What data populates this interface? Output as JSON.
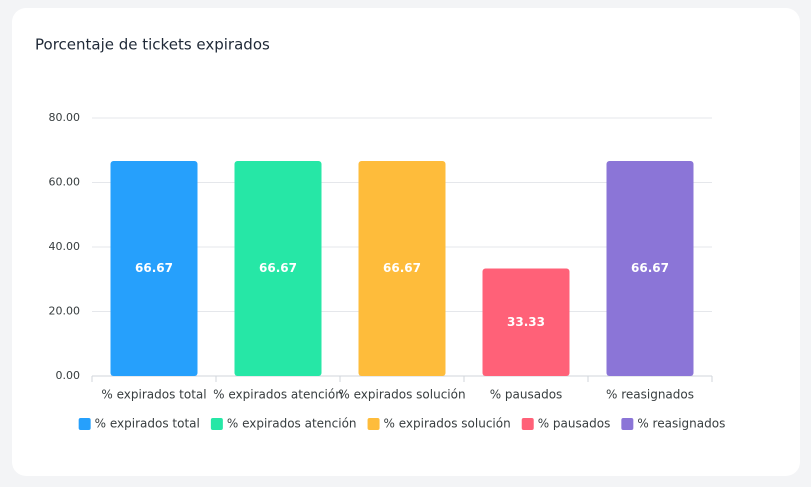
{
  "chart_data": {
    "type": "bar",
    "title": "Porcentaje de tickets expirados",
    "categories": [
      "% expirados total",
      "% expirados atención",
      "% expirados solución",
      "% pausados",
      "% reasignados"
    ],
    "values": [
      66.67,
      66.67,
      66.67,
      33.33,
      66.67
    ],
    "colors": [
      "#26a0fc",
      "#26e7a6",
      "#febc3b",
      "#ff6178",
      "#8b75d7"
    ],
    "ylim": [
      0,
      80
    ],
    "yticks": [
      {
        "value": 0,
        "label": "0.00"
      },
      {
        "value": 20,
        "label": "20.00"
      },
      {
        "value": 40,
        "label": "40.00"
      },
      {
        "value": 60,
        "label": "60.00"
      },
      {
        "value": 80,
        "label": "80.00"
      }
    ],
    "grid": true,
    "legend": "bottom"
  }
}
